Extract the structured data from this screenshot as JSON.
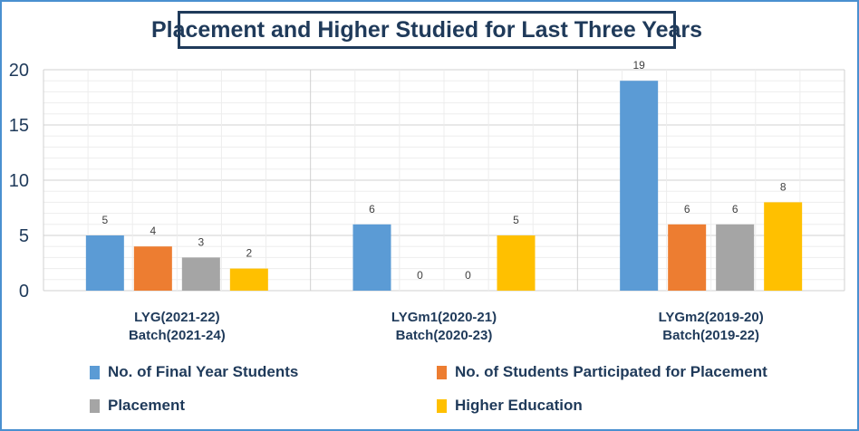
{
  "chart_data": {
    "type": "bar",
    "title": "Placement and Higher Studied for Last Three Years",
    "categories": [
      [
        "LYG(2021-22)",
        "Batch(2021-24)"
      ],
      [
        "LYGm1(2020-21)",
        "Batch(2020-23)"
      ],
      [
        "LYGm2(2019-20)",
        "Batch(2019-22)"
      ]
    ],
    "series": [
      {
        "name": "No. of Final Year Students",
        "color": "#5b9bd5",
        "values": [
          5,
          6,
          19
        ]
      },
      {
        "name": "No. of Students Participated for Placement",
        "color": "#ed7d31",
        "values": [
          4,
          0,
          6
        ]
      },
      {
        "name": "Placement",
        "color": "#a5a5a5",
        "values": [
          3,
          0,
          6
        ]
      },
      {
        "name": "Higher Education",
        "color": "#ffc000",
        "values": [
          2,
          5,
          8
        ]
      }
    ],
    "ylim": [
      0,
      20
    ],
    "yticks": [
      0,
      5,
      10,
      15,
      20
    ],
    "grid": true,
    "legend_position": "bottom",
    "xlabel": "",
    "ylabel": ""
  }
}
